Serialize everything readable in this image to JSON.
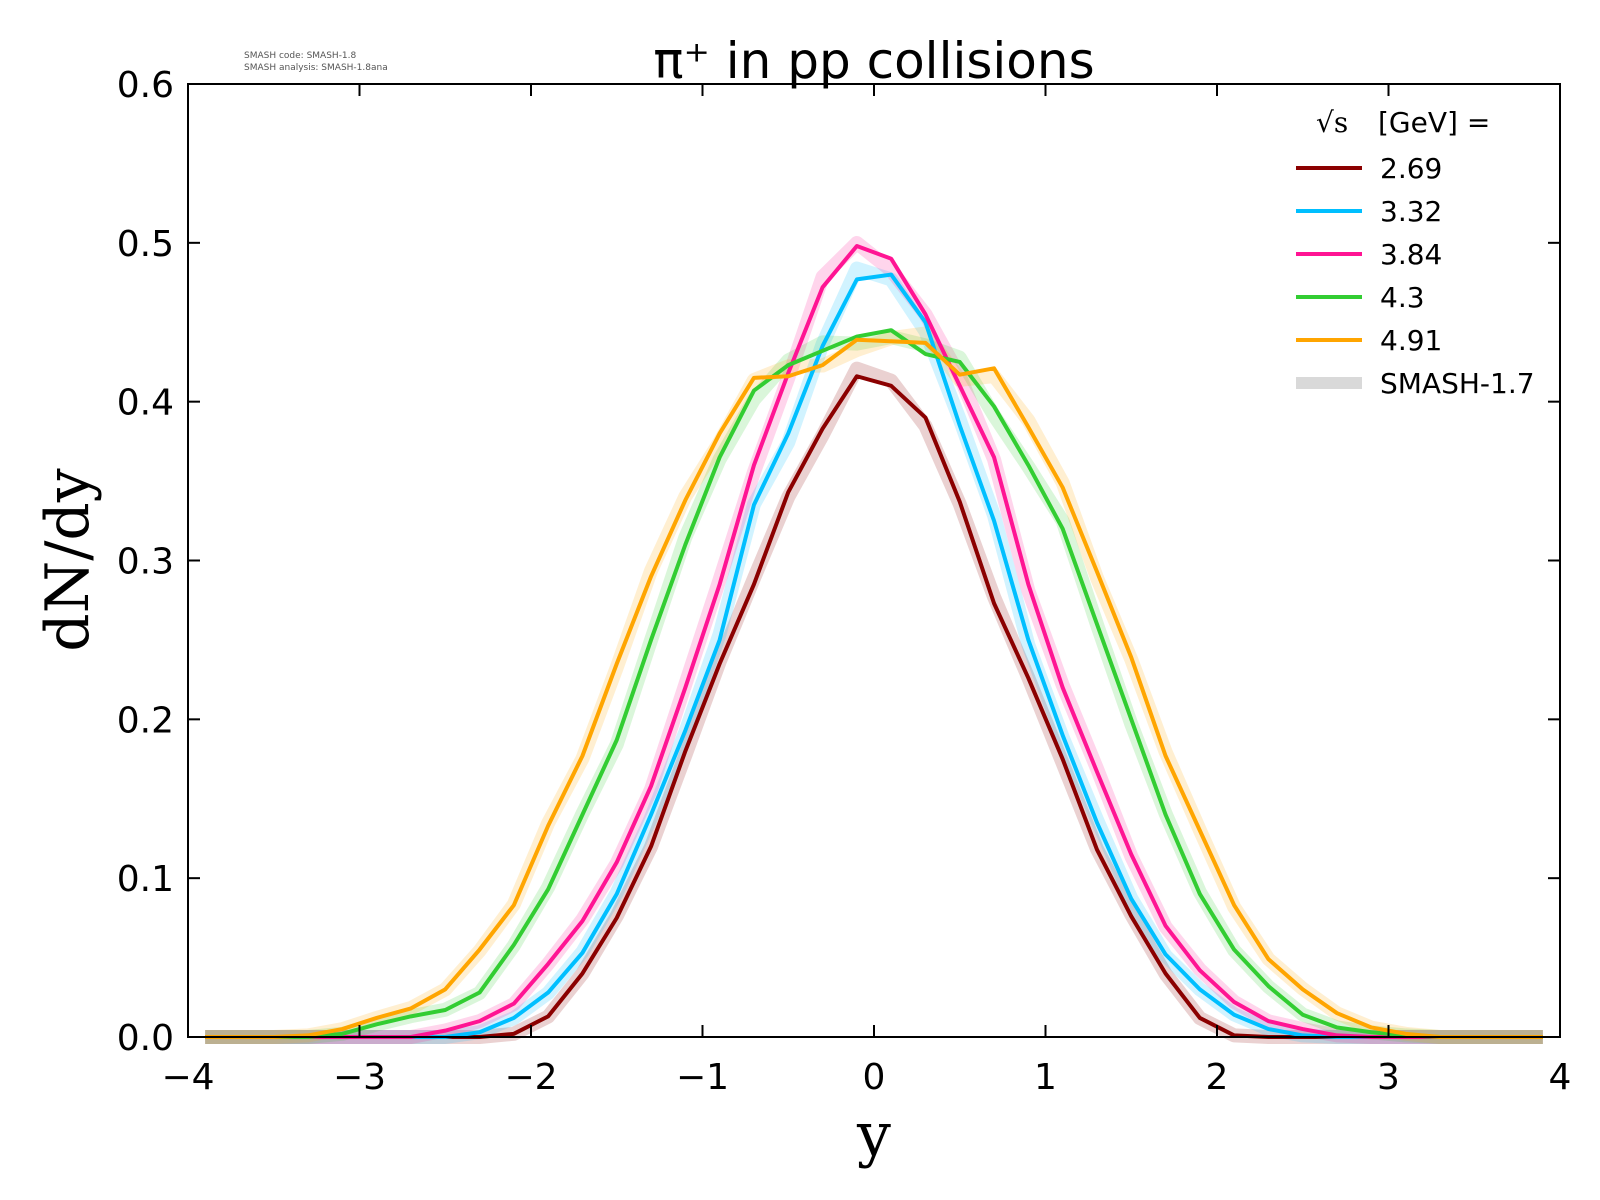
{
  "watermark": {
    "line1": "SMASH code:      SMASH-1.8",
    "line2": "SMASH analysis: SMASH-1.8ana"
  },
  "chart_data": {
    "type": "line",
    "title": "π⁺ in pp collisions",
    "xlabel": "y",
    "ylabel": "dN/dy",
    "xlim": [
      -4,
      4
    ],
    "ylim": [
      0,
      0.6
    ],
    "xticks": [
      "−4",
      "−3",
      "−2",
      "−1",
      "0",
      "1",
      "2",
      "3",
      "4"
    ],
    "yticks": [
      "0.0",
      "0.1",
      "0.2",
      "0.3",
      "0.4",
      "0.5",
      "0.6"
    ],
    "grid": false,
    "legend": {
      "placement": "top-right",
      "title_sqrt": "√s",
      "title_rest": "[GeV] ="
    },
    "x": [
      -3.9,
      -3.7,
      -3.5,
      -3.3,
      -3.1,
      -2.9,
      -2.7,
      -2.5,
      -2.3,
      -2.1,
      -1.9,
      -1.7,
      -1.5,
      -1.3,
      -1.1,
      -0.9,
      -0.7,
      -0.5,
      -0.3,
      -0.1,
      0.1,
      0.3,
      0.5,
      0.7,
      0.9,
      1.1,
      1.3,
      1.5,
      1.7,
      1.9,
      2.1,
      2.3,
      2.5,
      2.7,
      2.9,
      3.1,
      3.3,
      3.5,
      3.7,
      3.9
    ],
    "series": [
      {
        "name": "2.69",
        "color": "#8b0000",
        "values": [
          0,
          0,
          0,
          0,
          0,
          0,
          0,
          0,
          0,
          0.002,
          0.013,
          0.04,
          0.075,
          0.12,
          0.18,
          0.235,
          0.285,
          0.343,
          0.383,
          0.416,
          0.41,
          0.39,
          0.337,
          0.273,
          0.226,
          0.175,
          0.118,
          0.076,
          0.04,
          0.012,
          0.001,
          0,
          0,
          0,
          0,
          0,
          0,
          0,
          0,
          0
        ]
      },
      {
        "name": "3.32",
        "color": "#00bfff",
        "values": [
          0,
          0,
          0,
          0,
          0,
          0,
          0,
          0,
          0.003,
          0.012,
          0.028,
          0.053,
          0.09,
          0.14,
          0.193,
          0.25,
          0.335,
          0.38,
          0.435,
          0.477,
          0.48,
          0.45,
          0.385,
          0.325,
          0.25,
          0.19,
          0.135,
          0.087,
          0.052,
          0.03,
          0.014,
          0.005,
          0.001,
          0,
          0,
          0,
          0,
          0,
          0,
          0
        ]
      },
      {
        "name": "3.84",
        "color": "#ff1493",
        "values": [
          0,
          0,
          0,
          0,
          0,
          0,
          0,
          0.004,
          0.01,
          0.021,
          0.046,
          0.073,
          0.11,
          0.158,
          0.22,
          0.285,
          0.36,
          0.418,
          0.472,
          0.498,
          0.49,
          0.455,
          0.41,
          0.365,
          0.285,
          0.22,
          0.167,
          0.115,
          0.07,
          0.042,
          0.022,
          0.01,
          0.005,
          0.001,
          0,
          0,
          0,
          0,
          0,
          0
        ]
      },
      {
        "name": "4.3",
        "color": "#32cd32",
        "values": [
          0,
          0,
          0,
          0,
          0.002,
          0.008,
          0.013,
          0.017,
          0.028,
          0.058,
          0.093,
          0.14,
          0.187,
          0.25,
          0.31,
          0.365,
          0.407,
          0.423,
          0.432,
          0.441,
          0.445,
          0.43,
          0.425,
          0.397,
          0.36,
          0.32,
          0.26,
          0.2,
          0.14,
          0.09,
          0.055,
          0.032,
          0.014,
          0.006,
          0.003,
          0.001,
          0,
          0,
          0,
          0
        ]
      },
      {
        "name": "4.91",
        "color": "#ffa500",
        "values": [
          0,
          0,
          0,
          0.001,
          0.005,
          0.012,
          0.018,
          0.03,
          0.055,
          0.083,
          0.133,
          0.177,
          0.235,
          0.29,
          0.338,
          0.38,
          0.415,
          0.416,
          0.423,
          0.439,
          0.438,
          0.437,
          0.417,
          0.421,
          0.384,
          0.346,
          0.293,
          0.239,
          0.177,
          0.13,
          0.083,
          0.049,
          0.03,
          0.015,
          0.006,
          0.002,
          0,
          0,
          0,
          0
        ]
      }
    ],
    "reference": {
      "name": "SMASH-1.7",
      "color": "#d9d9d9"
    }
  }
}
